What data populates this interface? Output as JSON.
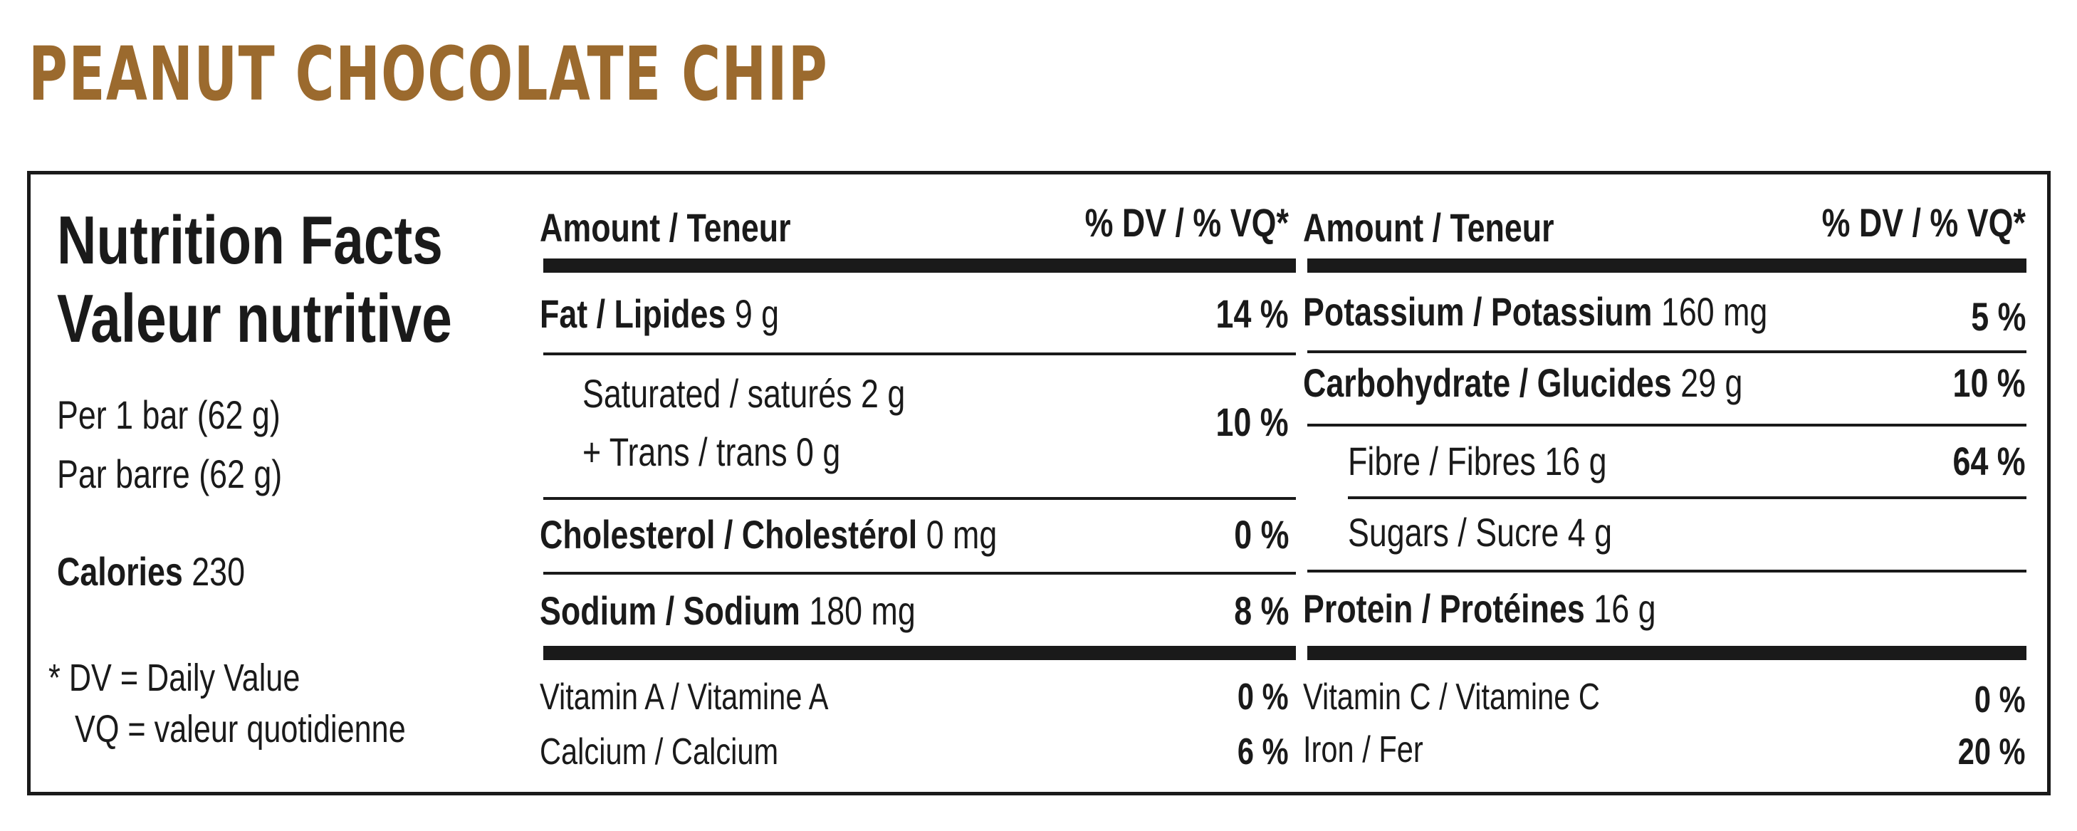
{
  "product": {
    "title": "PEANUT CHOCOLATE CHIP",
    "title_color": "#9b6a2e"
  },
  "left": {
    "title_en": "Nutrition Facts",
    "title_fr": "Valeur nutritive",
    "serving_en": "Per 1 bar (62 g)",
    "serving_fr": "Par barre (62 g)",
    "calories_label": "Calories",
    "calories_value": "230",
    "footnote_1": "* DV = Daily Value",
    "footnote_2": "VQ = valeur quotidienne"
  },
  "header": {
    "amount": "Amount / Teneur",
    "dv": "% DV / % VQ*"
  },
  "col1": {
    "fat_label": "Fat / Lipides",
    "fat_amount": "9 g",
    "fat_dv": "14 %",
    "sat_label": "Saturated / saturés",
    "sat_amount": "2 g",
    "trans_label": "+ Trans / trans",
    "trans_amount": "0 g",
    "sat_trans_dv": "10 %",
    "chol_label": "Cholesterol / Cholestérol",
    "chol_amount": "0 mg",
    "chol_dv": "0 %",
    "sodium_label": "Sodium / Sodium",
    "sodium_amount": "180 mg",
    "sodium_dv": "8 %",
    "vita_label": "Vitamin A  / Vitamine A",
    "vita_dv": "0 %",
    "calcium_label": "Calcium / Calcium",
    "calcium_dv": "6 %"
  },
  "col2": {
    "potassium_label": "Potassium / Potassium",
    "potassium_amount": "160 mg",
    "potassium_dv": "5 %",
    "carb_label": "Carbohydrate / Glucides",
    "carb_amount": "29 g",
    "carb_dv": "10 %",
    "fibre_label": "Fibre / Fibres",
    "fibre_amount": "16 g",
    "fibre_dv": "64 %",
    "sugars_label": "Sugars / Sucre",
    "sugars_amount": "4 g",
    "protein_label": "Protein / Protéines",
    "protein_amount": "16 g",
    "vitc_label": "Vitamin C / Vitamine C",
    "vitc_dv": "0 %",
    "iron_label": "Iron / Fer",
    "iron_dv": "20 %"
  }
}
